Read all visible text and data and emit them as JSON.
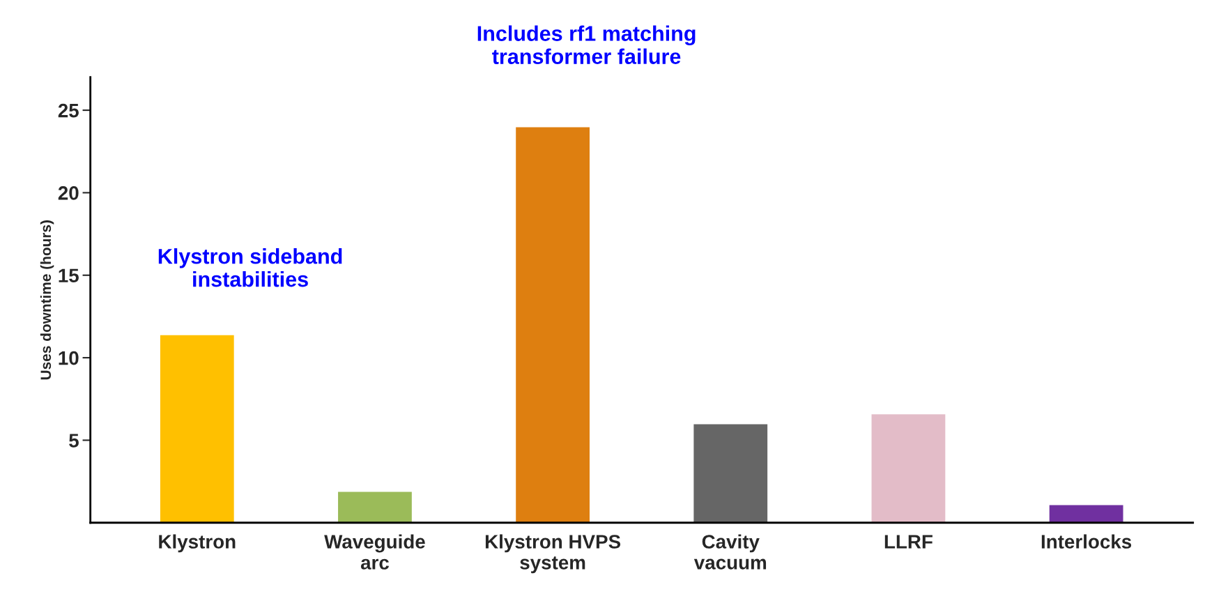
{
  "chart_data": {
    "type": "bar",
    "categories": [
      "Klystron",
      "Waveguide\narc",
      "Klystron HVPS\nsystem",
      "Cavity\nvacuum",
      "LLRF",
      "Interlocks"
    ],
    "values": [
      11.4,
      1.9,
      24.0,
      6.0,
      6.6,
      1.1
    ],
    "colors": [
      "#ffc000",
      "#9bbb59",
      "#de7f10",
      "#666666",
      "#e3bcc8",
      "#7030a0"
    ],
    "ylabel": "Uses downtime (hours)",
    "ylim": [
      0,
      27
    ],
    "yticks": [
      5,
      10,
      15,
      20,
      25
    ],
    "annotations": [
      "Klystron sideband\ninstabilities",
      "Includes rf1 matching\ntransformer failure"
    ],
    "grid": false
  }
}
